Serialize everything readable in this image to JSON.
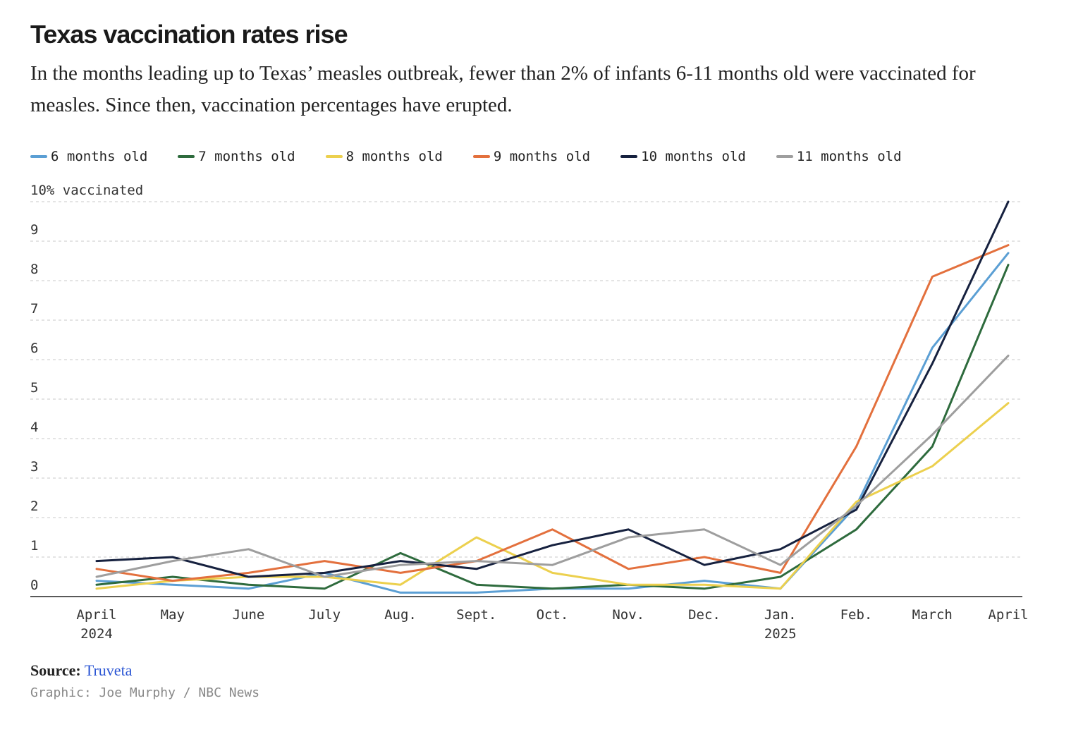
{
  "header": {
    "title": "Texas vaccination rates rise",
    "subtitle": "In the months leading up to Texas’ measles outbreak, fewer than 2% of infants 6-11 months old were vaccinated for measles. Since then, vaccination percentages have erupted."
  },
  "footer": {
    "source_label": "Source:",
    "source_name": "Truveta",
    "credit": "Graphic: Joe Murphy / NBC News"
  },
  "chart_data": {
    "type": "line",
    "ylabel": "10% vaccinated",
    "ylim": [
      0,
      10
    ],
    "yticks": [
      "0",
      "1",
      "2",
      "3",
      "4",
      "5",
      "6",
      "7",
      "8",
      "9",
      "10% vaccinated"
    ],
    "grid": true,
    "legend_position": "top",
    "categories": [
      [
        "April",
        "2024"
      ],
      [
        "May"
      ],
      [
        "June"
      ],
      [
        "July"
      ],
      [
        "Aug."
      ],
      [
        "Sept."
      ],
      [
        "Oct."
      ],
      [
        "Nov."
      ],
      [
        "Dec."
      ],
      [
        "Jan.",
        "2025"
      ],
      [
        "Feb."
      ],
      [
        "March"
      ],
      [
        "April"
      ]
    ],
    "series": [
      {
        "name": "6 months old",
        "color": "#5b9fd4",
        "values": [
          0.4,
          0.3,
          0.2,
          0.6,
          0.1,
          0.1,
          0.2,
          0.2,
          0.4,
          0.2,
          2.3,
          6.3,
          8.7
        ]
      },
      {
        "name": "7 months old",
        "color": "#2e6b3d",
        "values": [
          0.3,
          0.5,
          0.3,
          0.2,
          1.1,
          0.3,
          0.2,
          0.3,
          0.2,
          0.5,
          1.7,
          3.8,
          8.4
        ]
      },
      {
        "name": "8 months old",
        "color": "#ecd04e",
        "values": [
          0.2,
          0.4,
          0.5,
          0.5,
          0.3,
          1.5,
          0.6,
          0.3,
          0.3,
          0.2,
          2.4,
          3.3,
          4.9
        ]
      },
      {
        "name": "9 months old",
        "color": "#e3703d",
        "values": [
          0.7,
          0.4,
          0.6,
          0.9,
          0.6,
          0.9,
          1.7,
          0.7,
          1.0,
          0.6,
          3.8,
          8.1,
          8.9
        ]
      },
      {
        "name": "10 months old",
        "color": "#16213f",
        "values": [
          0.9,
          1.0,
          0.5,
          0.6,
          0.9,
          0.7,
          1.3,
          1.7,
          0.8,
          1.2,
          2.2,
          5.9,
          10.0
        ]
      },
      {
        "name": "11 months old",
        "color": "#9e9e9e",
        "values": [
          0.5,
          0.9,
          1.2,
          0.5,
          0.8,
          0.9,
          0.8,
          1.5,
          1.7,
          0.8,
          2.3,
          4.1,
          6.1
        ]
      }
    ]
  }
}
